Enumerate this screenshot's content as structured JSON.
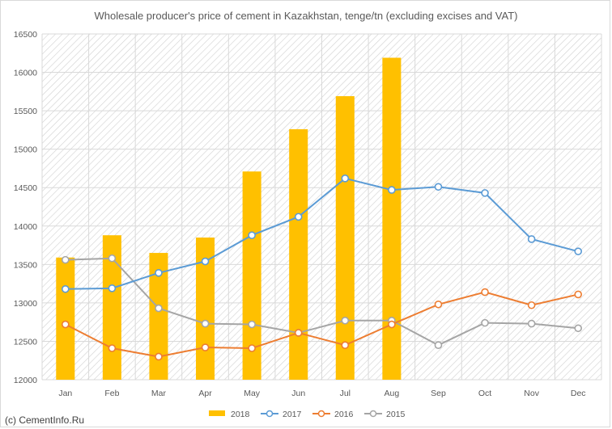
{
  "chart_data": {
    "type": "bar",
    "title": "Wholesale producer's price of cement in Kazakhstan, tenge/tn (excluding excises and VAT)",
    "categories": [
      "Jan",
      "Feb",
      "Mar",
      "Apr",
      "May",
      "Jun",
      "Jul",
      "Aug",
      "Sep",
      "Oct",
      "Nov",
      "Dec"
    ],
    "ylim": [
      12000,
      16500
    ],
    "yticks": [
      "12000",
      "12500",
      "13000",
      "13500",
      "14000",
      "14500",
      "15000",
      "15500",
      "16000",
      "16500"
    ],
    "grid": true,
    "legend_position": "bottom",
    "series": [
      {
        "name": "2018",
        "type": "bar",
        "color": "#FFC000",
        "values": [
          13590,
          13880,
          13650,
          13850,
          14710,
          15260,
          15690,
          16190,
          null,
          null,
          null,
          null
        ]
      },
      {
        "name": "2017",
        "type": "line",
        "color": "#5B9BD5",
        "values": [
          13180,
          13190,
          13390,
          13540,
          13880,
          14120,
          14620,
          14470,
          14510,
          14430,
          13830,
          13670
        ]
      },
      {
        "name": "2016",
        "type": "line",
        "color": "#ED7D31",
        "values": [
          12720,
          12410,
          12300,
          12420,
          12410,
          12610,
          12450,
          12720,
          12980,
          13140,
          12970,
          13110
        ]
      },
      {
        "name": "2015",
        "type": "line",
        "color": "#A5A5A5",
        "values": [
          13560,
          13580,
          12930,
          12730,
          12720,
          12610,
          12770,
          12770,
          12450,
          12740,
          12730,
          12670
        ]
      }
    ]
  },
  "footer": {
    "credit": "(c) CementInfo.Ru"
  }
}
